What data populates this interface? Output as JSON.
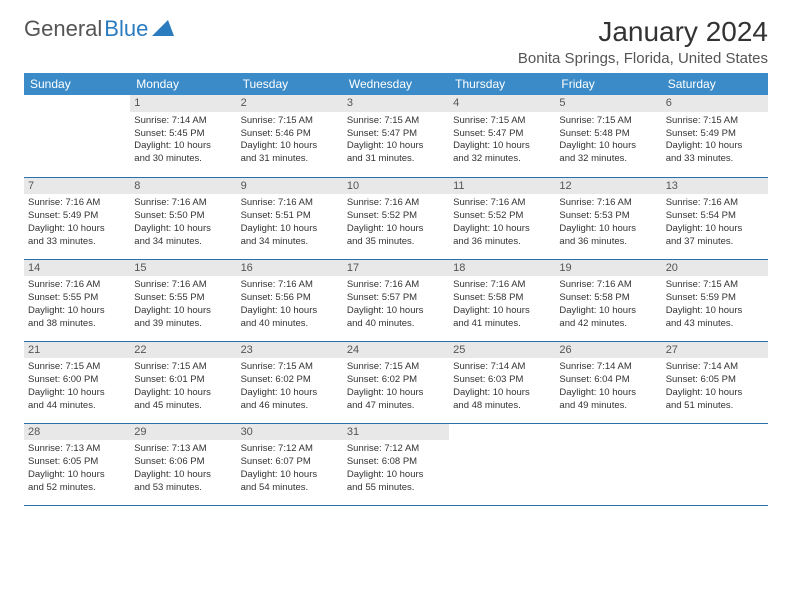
{
  "logo": {
    "text1": "General",
    "text2": "Blue"
  },
  "title": "January 2024",
  "location": "Bonita Springs, Florida, United States",
  "header_bg": "#3b8bc9",
  "daynum_bg": "#e8e8e8",
  "row_border": "#2b6fa8",
  "weekdays": [
    "Sunday",
    "Monday",
    "Tuesday",
    "Wednesday",
    "Thursday",
    "Friday",
    "Saturday"
  ],
  "weeks": [
    [
      null,
      {
        "n": "1",
        "sr": "Sunrise: 7:14 AM",
        "ss": "Sunset: 5:45 PM",
        "d1": "Daylight: 10 hours",
        "d2": "and 30 minutes."
      },
      {
        "n": "2",
        "sr": "Sunrise: 7:15 AM",
        "ss": "Sunset: 5:46 PM",
        "d1": "Daylight: 10 hours",
        "d2": "and 31 minutes."
      },
      {
        "n": "3",
        "sr": "Sunrise: 7:15 AM",
        "ss": "Sunset: 5:47 PM",
        "d1": "Daylight: 10 hours",
        "d2": "and 31 minutes."
      },
      {
        "n": "4",
        "sr": "Sunrise: 7:15 AM",
        "ss": "Sunset: 5:47 PM",
        "d1": "Daylight: 10 hours",
        "d2": "and 32 minutes."
      },
      {
        "n": "5",
        "sr": "Sunrise: 7:15 AM",
        "ss": "Sunset: 5:48 PM",
        "d1": "Daylight: 10 hours",
        "d2": "and 32 minutes."
      },
      {
        "n": "6",
        "sr": "Sunrise: 7:15 AM",
        "ss": "Sunset: 5:49 PM",
        "d1": "Daylight: 10 hours",
        "d2": "and 33 minutes."
      }
    ],
    [
      {
        "n": "7",
        "sr": "Sunrise: 7:16 AM",
        "ss": "Sunset: 5:49 PM",
        "d1": "Daylight: 10 hours",
        "d2": "and 33 minutes."
      },
      {
        "n": "8",
        "sr": "Sunrise: 7:16 AM",
        "ss": "Sunset: 5:50 PM",
        "d1": "Daylight: 10 hours",
        "d2": "and 34 minutes."
      },
      {
        "n": "9",
        "sr": "Sunrise: 7:16 AM",
        "ss": "Sunset: 5:51 PM",
        "d1": "Daylight: 10 hours",
        "d2": "and 34 minutes."
      },
      {
        "n": "10",
        "sr": "Sunrise: 7:16 AM",
        "ss": "Sunset: 5:52 PM",
        "d1": "Daylight: 10 hours",
        "d2": "and 35 minutes."
      },
      {
        "n": "11",
        "sr": "Sunrise: 7:16 AM",
        "ss": "Sunset: 5:52 PM",
        "d1": "Daylight: 10 hours",
        "d2": "and 36 minutes."
      },
      {
        "n": "12",
        "sr": "Sunrise: 7:16 AM",
        "ss": "Sunset: 5:53 PM",
        "d1": "Daylight: 10 hours",
        "d2": "and 36 minutes."
      },
      {
        "n": "13",
        "sr": "Sunrise: 7:16 AM",
        "ss": "Sunset: 5:54 PM",
        "d1": "Daylight: 10 hours",
        "d2": "and 37 minutes."
      }
    ],
    [
      {
        "n": "14",
        "sr": "Sunrise: 7:16 AM",
        "ss": "Sunset: 5:55 PM",
        "d1": "Daylight: 10 hours",
        "d2": "and 38 minutes."
      },
      {
        "n": "15",
        "sr": "Sunrise: 7:16 AM",
        "ss": "Sunset: 5:55 PM",
        "d1": "Daylight: 10 hours",
        "d2": "and 39 minutes."
      },
      {
        "n": "16",
        "sr": "Sunrise: 7:16 AM",
        "ss": "Sunset: 5:56 PM",
        "d1": "Daylight: 10 hours",
        "d2": "and 40 minutes."
      },
      {
        "n": "17",
        "sr": "Sunrise: 7:16 AM",
        "ss": "Sunset: 5:57 PM",
        "d1": "Daylight: 10 hours",
        "d2": "and 40 minutes."
      },
      {
        "n": "18",
        "sr": "Sunrise: 7:16 AM",
        "ss": "Sunset: 5:58 PM",
        "d1": "Daylight: 10 hours",
        "d2": "and 41 minutes."
      },
      {
        "n": "19",
        "sr": "Sunrise: 7:16 AM",
        "ss": "Sunset: 5:58 PM",
        "d1": "Daylight: 10 hours",
        "d2": "and 42 minutes."
      },
      {
        "n": "20",
        "sr": "Sunrise: 7:15 AM",
        "ss": "Sunset: 5:59 PM",
        "d1": "Daylight: 10 hours",
        "d2": "and 43 minutes."
      }
    ],
    [
      {
        "n": "21",
        "sr": "Sunrise: 7:15 AM",
        "ss": "Sunset: 6:00 PM",
        "d1": "Daylight: 10 hours",
        "d2": "and 44 minutes."
      },
      {
        "n": "22",
        "sr": "Sunrise: 7:15 AM",
        "ss": "Sunset: 6:01 PM",
        "d1": "Daylight: 10 hours",
        "d2": "and 45 minutes."
      },
      {
        "n": "23",
        "sr": "Sunrise: 7:15 AM",
        "ss": "Sunset: 6:02 PM",
        "d1": "Daylight: 10 hours",
        "d2": "and 46 minutes."
      },
      {
        "n": "24",
        "sr": "Sunrise: 7:15 AM",
        "ss": "Sunset: 6:02 PM",
        "d1": "Daylight: 10 hours",
        "d2": "and 47 minutes."
      },
      {
        "n": "25",
        "sr": "Sunrise: 7:14 AM",
        "ss": "Sunset: 6:03 PM",
        "d1": "Daylight: 10 hours",
        "d2": "and 48 minutes."
      },
      {
        "n": "26",
        "sr": "Sunrise: 7:14 AM",
        "ss": "Sunset: 6:04 PM",
        "d1": "Daylight: 10 hours",
        "d2": "and 49 minutes."
      },
      {
        "n": "27",
        "sr": "Sunrise: 7:14 AM",
        "ss": "Sunset: 6:05 PM",
        "d1": "Daylight: 10 hours",
        "d2": "and 51 minutes."
      }
    ],
    [
      {
        "n": "28",
        "sr": "Sunrise: 7:13 AM",
        "ss": "Sunset: 6:05 PM",
        "d1": "Daylight: 10 hours",
        "d2": "and 52 minutes."
      },
      {
        "n": "29",
        "sr": "Sunrise: 7:13 AM",
        "ss": "Sunset: 6:06 PM",
        "d1": "Daylight: 10 hours",
        "d2": "and 53 minutes."
      },
      {
        "n": "30",
        "sr": "Sunrise: 7:12 AM",
        "ss": "Sunset: 6:07 PM",
        "d1": "Daylight: 10 hours",
        "d2": "and 54 minutes."
      },
      {
        "n": "31",
        "sr": "Sunrise: 7:12 AM",
        "ss": "Sunset: 6:08 PM",
        "d1": "Daylight: 10 hours",
        "d2": "and 55 minutes."
      },
      null,
      null,
      null
    ]
  ]
}
